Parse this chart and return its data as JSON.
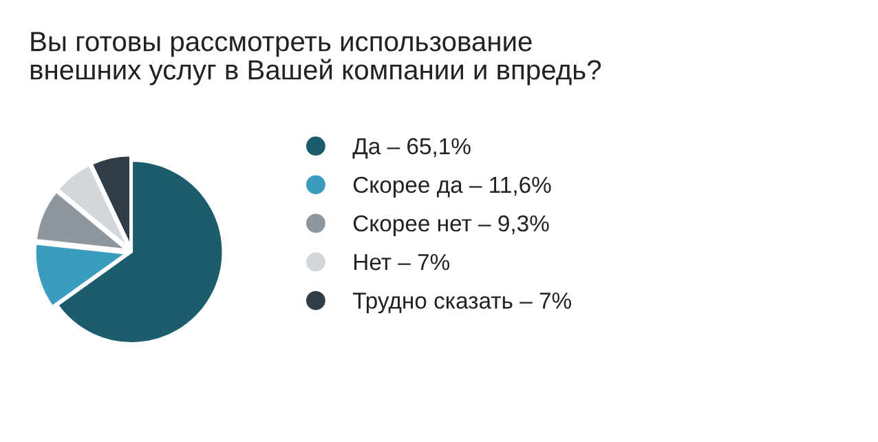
{
  "chart_data": {
    "type": "pie",
    "title": "Вы готовы рассмотреть использование\nвнешних услуг в Вашей компании и впредь?",
    "categories": [
      "Да – 65,1%",
      "Скорее да – 11,6%",
      "Скорее нет – 9,3%",
      "Нет – 7%",
      "Трудно сказать – 7%"
    ],
    "values": [
      65.1,
      11.6,
      9.3,
      7,
      7
    ],
    "colors": [
      "#1b5d6e",
      "#3a9dbf",
      "#8e969e",
      "#d3d7db",
      "#2e3d48"
    ],
    "legend": "right"
  }
}
